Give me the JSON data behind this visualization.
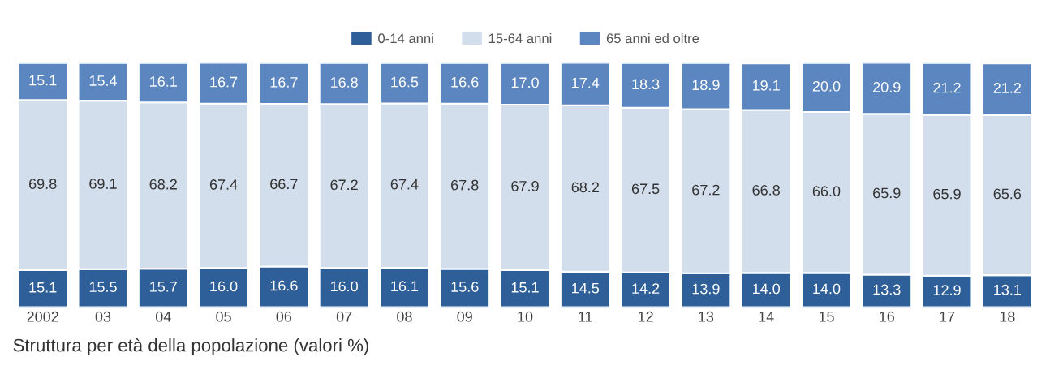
{
  "chart_data": {
    "type": "bar",
    "stacked": true,
    "legend": "top",
    "grid": false,
    "tick_labels": "x",
    "title": "Struttura per età della popolazione (valori %)",
    "categories": [
      "2002",
      "03",
      "04",
      "05",
      "06",
      "07",
      "08",
      "09",
      "10",
      "11",
      "12",
      "13",
      "14",
      "15",
      "16",
      "17",
      "18"
    ],
    "series": [
      {
        "name": "0-14 anni",
        "color": "#2f5f98",
        "values": [
          15.1,
          15.5,
          15.7,
          16.0,
          16.6,
          16.0,
          16.1,
          15.6,
          15.1,
          14.5,
          14.2,
          13.9,
          14.0,
          14.0,
          13.3,
          12.9,
          13.1
        ],
        "value_labels": [
          "15.1",
          "15.5",
          "15.7",
          "16.0",
          "16.6",
          "16.0",
          "16.1",
          "15.6",
          "15.1",
          "14.5",
          "14.2",
          "13.9",
          "14.0",
          "14.0",
          "13.3",
          "12.9",
          "13.1"
        ]
      },
      {
        "name": "15-64 anni",
        "color": "#d3deec",
        "values": [
          69.8,
          69.1,
          68.2,
          67.4,
          66.7,
          67.2,
          67.4,
          67.8,
          67.9,
          68.2,
          67.5,
          67.2,
          66.8,
          66.0,
          65.9,
          65.9,
          65.6
        ],
        "value_labels": [
          "69.8",
          "69.1",
          "68.2",
          "67.4",
          "66.7",
          "67.2",
          "67.4",
          "67.8",
          "67.9",
          "68.2",
          "67.5",
          "67.2",
          "66.8",
          "66.0",
          "65.9",
          "65.9",
          "65.6"
        ]
      },
      {
        "name": "65 anni ed oltre",
        "color": "#5b86bf",
        "values": [
          15.1,
          15.4,
          16.1,
          16.7,
          16.7,
          16.8,
          16.5,
          16.6,
          17.0,
          17.4,
          18.3,
          18.9,
          19.1,
          20.0,
          20.9,
          21.2,
          21.2
        ],
        "value_labels": [
          "15.1",
          "15.4",
          "16.1",
          "16.7",
          "16.7",
          "16.8",
          "16.5",
          "16.6",
          "17.0",
          "17.4",
          "18.3",
          "18.9",
          "19.1",
          "20.0",
          "20.9",
          "21.2",
          "21.2"
        ]
      }
    ]
  }
}
